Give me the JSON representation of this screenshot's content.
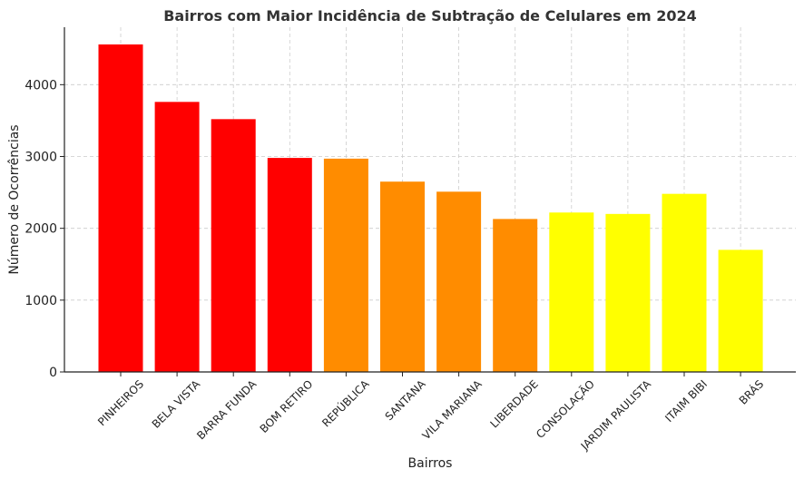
{
  "chart_data": {
    "type": "bar",
    "title": "Bairros com Maior Incidência de Subtração de Celulares em 2024",
    "xlabel": "Bairros",
    "ylabel": "Número de Ocorrências",
    "categories": [
      "PINHEIROS",
      "BELA VISTA",
      "BARRA FUNDA",
      "BOM RETIRO",
      "REPÚBLICA",
      "SANTANA",
      "VILA MARIANA",
      "LIBERDADE",
      "CONSOLAÇÃO",
      "JARDIM PAULISTA",
      "ITAIM BIBI",
      "BRÁS"
    ],
    "values": [
      4560,
      3760,
      3520,
      2980,
      2970,
      2650,
      2510,
      2130,
      2220,
      2200,
      2480,
      1700
    ],
    "bar_colors": [
      "#ff0000",
      "#ff0000",
      "#ff0000",
      "#ff0000",
      "#ff8c00",
      "#ff8c00",
      "#ff8c00",
      "#ff8c00",
      "#ffff00",
      "#ffff00",
      "#ffff00",
      "#ffff00"
    ],
    "ylim": [
      0,
      4800
    ],
    "yticks": [
      0,
      1000,
      2000,
      3000,
      4000
    ],
    "grid": true
  }
}
